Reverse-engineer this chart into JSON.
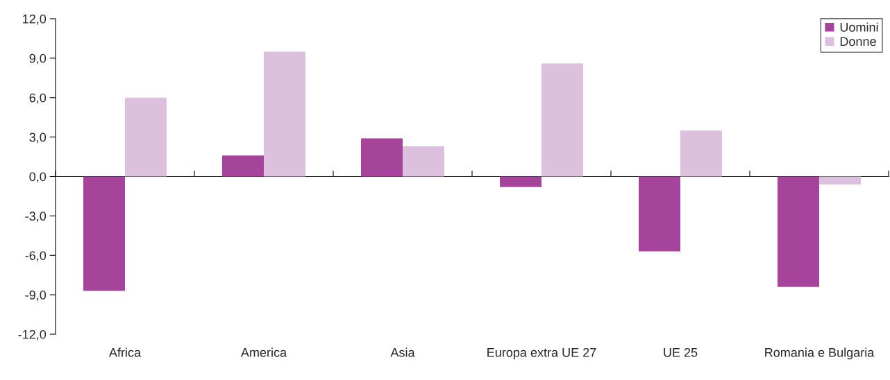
{
  "chart_data": {
    "type": "bar",
    "categories": [
      "Africa",
      "America",
      "Asia",
      "Europa extra UE 27",
      "UE 25",
      "Romania e Bulgaria"
    ],
    "series": [
      {
        "name": "Uomini",
        "color": "#a5449a",
        "values": [
          -8.7,
          1.6,
          2.9,
          -0.8,
          -5.7,
          -8.4
        ]
      },
      {
        "name": "Donne",
        "color": "#dcc0dd",
        "values": [
          6.0,
          9.5,
          2.3,
          8.6,
          3.5,
          -0.6
        ]
      }
    ],
    "ylim": [
      -12,
      12
    ],
    "yticks": [
      {
        "value": -12,
        "label": "-12,0"
      },
      {
        "value": -9,
        "label": "-9,0"
      },
      {
        "value": -6,
        "label": "-6,0"
      },
      {
        "value": -3,
        "label": "-3,0"
      },
      {
        "value": 0,
        "label": "0,0"
      },
      {
        "value": 3,
        "label": "3,0"
      },
      {
        "value": 6,
        "label": "6,0"
      },
      {
        "value": 9,
        "label": "9,0"
      },
      {
        "value": 12,
        "label": "12,0"
      }
    ],
    "legend": "top right"
  }
}
